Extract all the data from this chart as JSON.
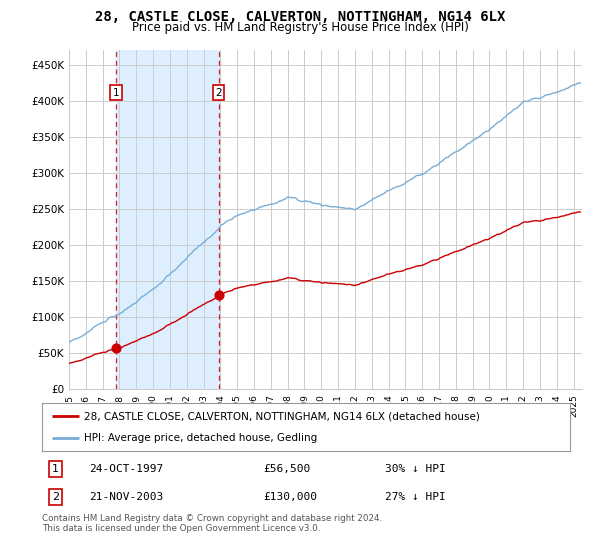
{
  "title": "28, CASTLE CLOSE, CALVERTON, NOTTINGHAM, NG14 6LX",
  "subtitle": "Price paid vs. HM Land Registry's House Price Index (HPI)",
  "ylabel_ticks": [
    "£0",
    "£50K",
    "£100K",
    "£150K",
    "£200K",
    "£250K",
    "£300K",
    "£350K",
    "£400K",
    "£450K"
  ],
  "ytick_values": [
    0,
    50000,
    100000,
    150000,
    200000,
    250000,
    300000,
    350000,
    400000,
    450000
  ],
  "ylim": [
    0,
    470000
  ],
  "xlim_start": 1995.0,
  "xlim_end": 2025.5,
  "sale1_x": 1997.81,
  "sale1_y": 56500,
  "sale2_x": 2003.89,
  "sale2_y": 130000,
  "sale1_date": "24-OCT-1997",
  "sale1_price": "£56,500",
  "sale1_hpi": "30% ↓ HPI",
  "sale2_date": "21-NOV-2003",
  "sale2_price": "£130,000",
  "sale2_hpi": "27% ↓ HPI",
  "line_color_property": "#cc0000",
  "line_color_hpi": "#7aaed6",
  "dot_color": "#cc0000",
  "vline_color": "#cc0000",
  "shade_color": "#ddeeff",
  "legend_property": "28, CASTLE CLOSE, CALVERTON, NOTTINGHAM, NG14 6LX (detached house)",
  "legend_hpi": "HPI: Average price, detached house, Gedling",
  "footer": "Contains HM Land Registry data © Crown copyright and database right 2024.\nThis data is licensed under the Open Government Licence v3.0.",
  "background_color": "#ffffff",
  "grid_color": "#cccccc",
  "title_fontsize": 10,
  "subtitle_fontsize": 8.5,
  "tick_fontsize": 7.5,
  "label_fontsize": 8
}
